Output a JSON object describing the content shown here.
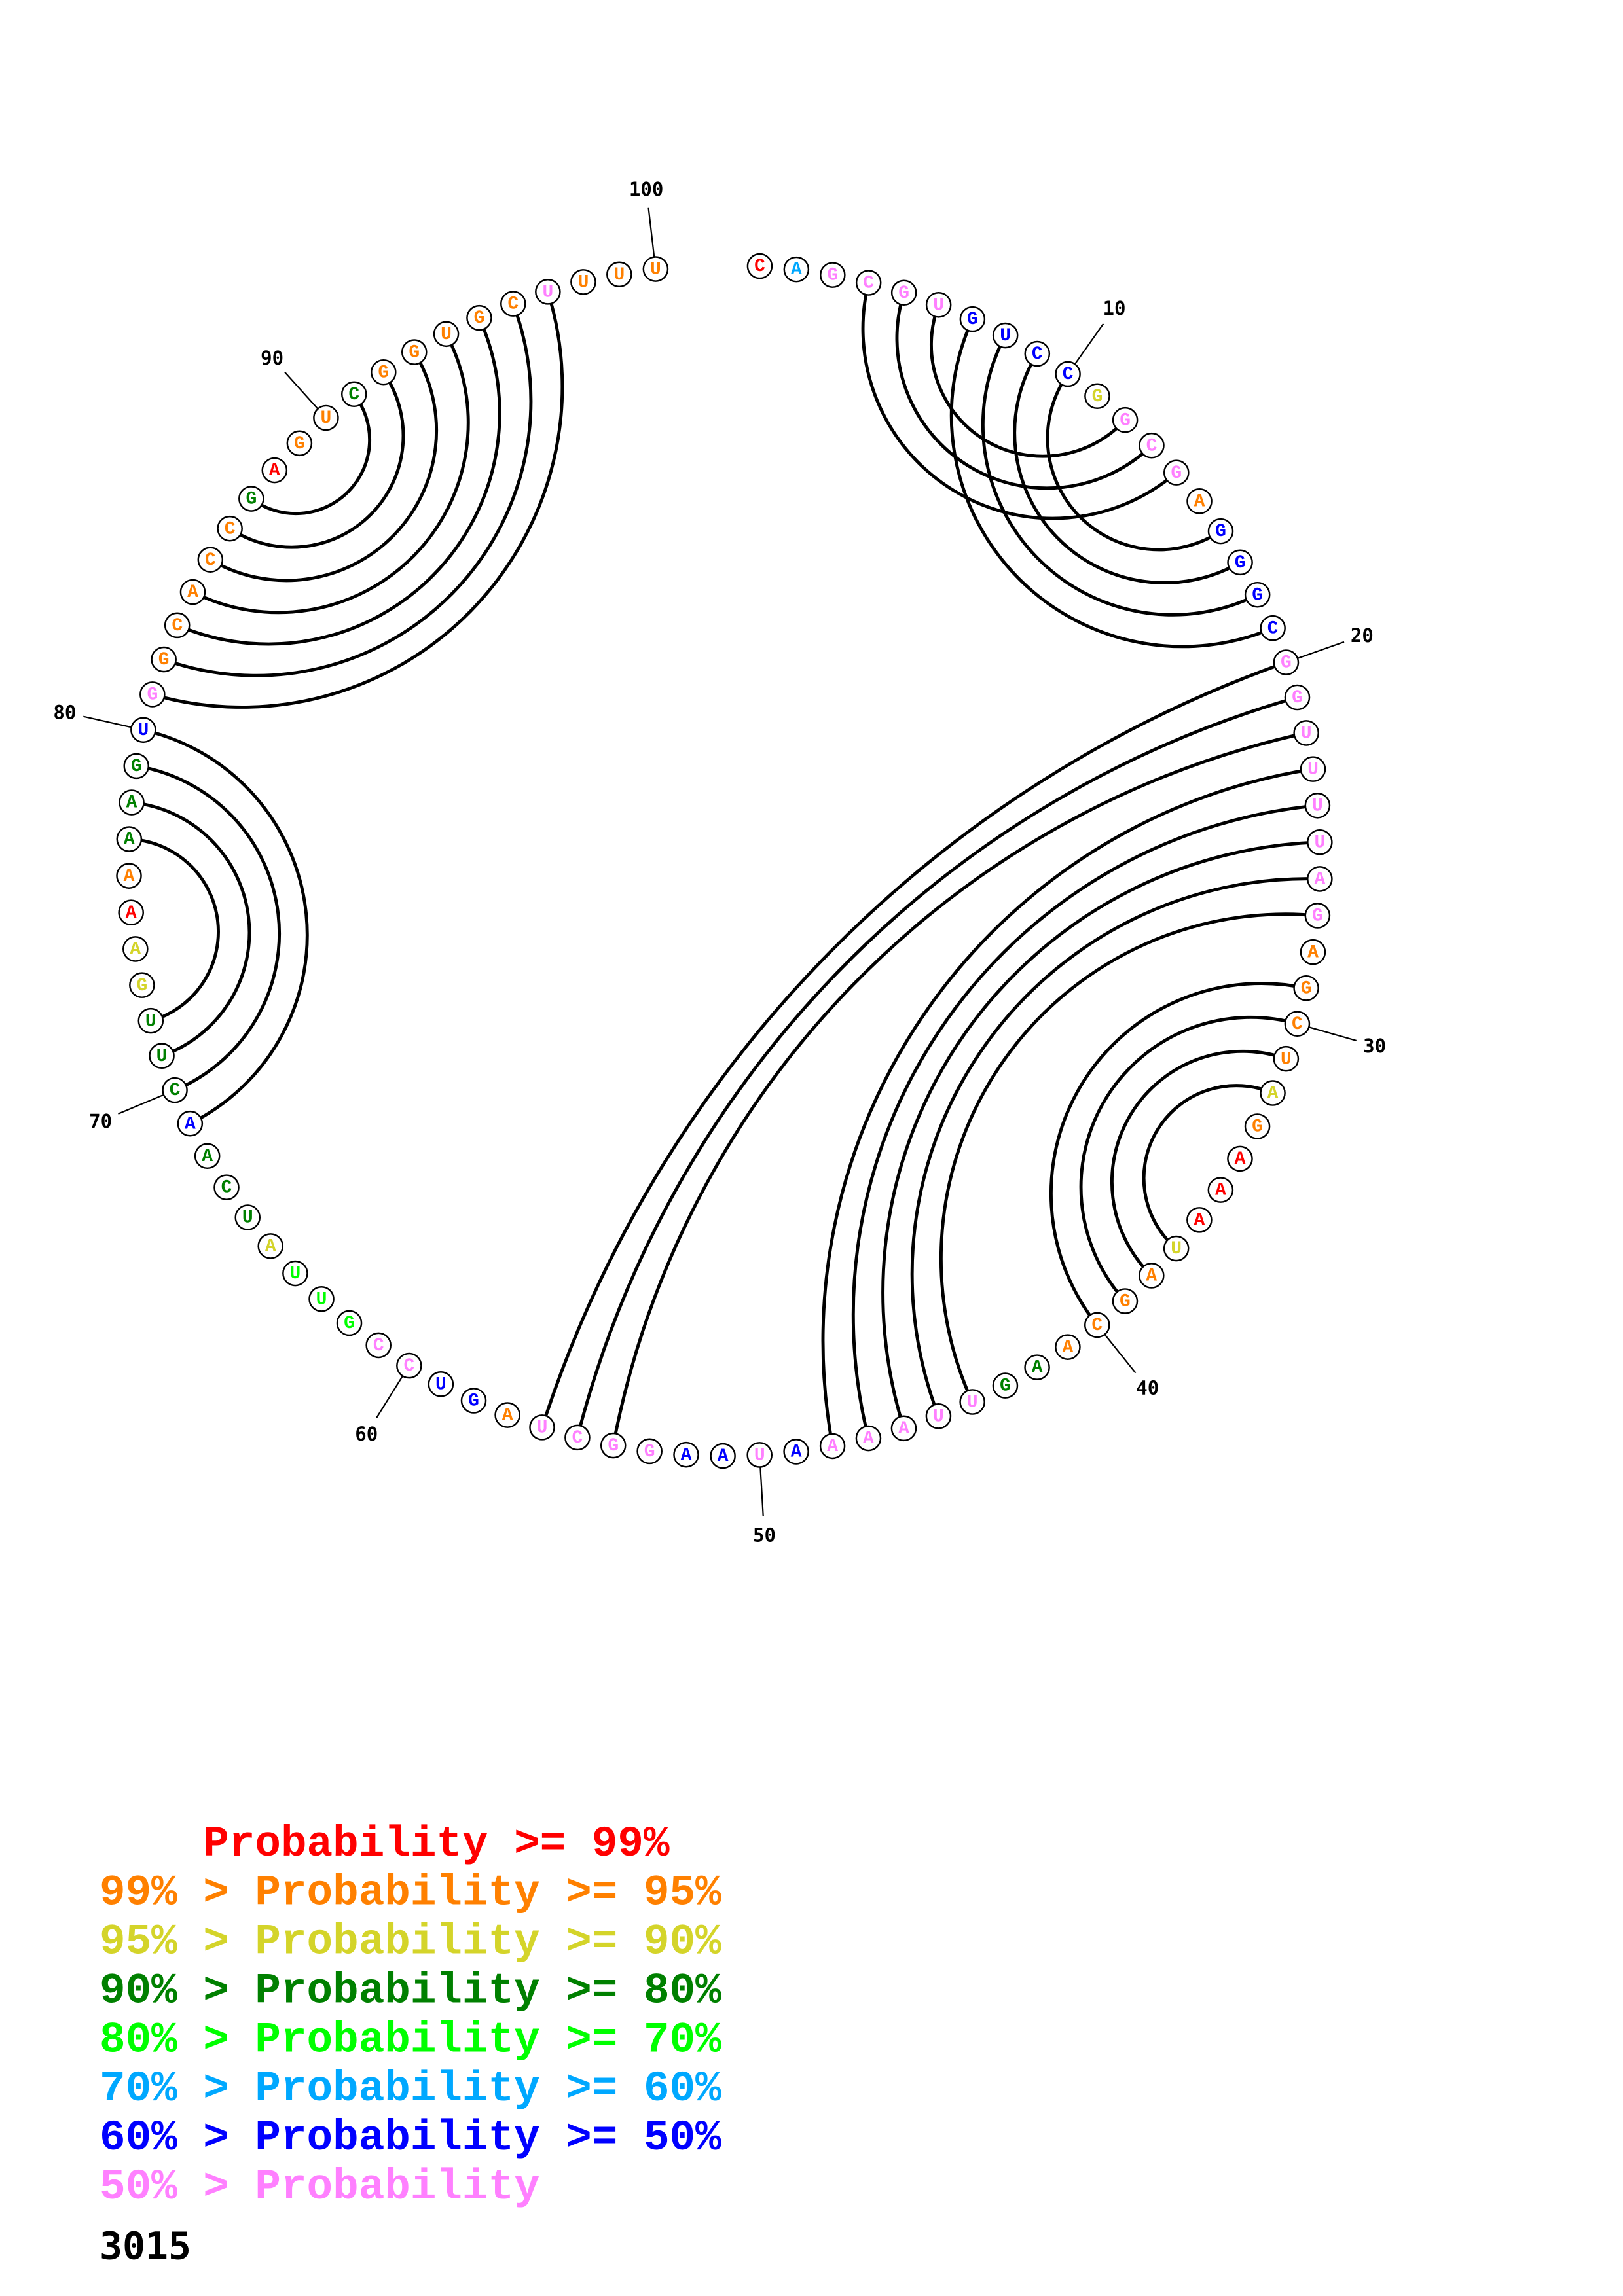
{
  "diagram": {
    "type": "rna-circle-plot",
    "sequence": "CAGCGUGUCCGGCGAGGGCGGUUUUAGAGCUAGAAAUAGCAAGUUAAAAUAAGGCUAGUCCGUUAUCAACUUGAAAAAGUGGCACCGAGUCGGUGCUUUU",
    "color_classes": "RSPPPPBBBBYPPPOBBBBPPPPPPPPOOOOYORRRYOOOODDPPPPPBPBBPPPPOBBPPLLLYDDDBDDDYYRODDDBPOOOOODROODOOOOOPOOO",
    "pairs": [
      [
        4,
        14
      ],
      [
        5,
        13
      ],
      [
        6,
        12
      ],
      [
        7,
        19
      ],
      [
        8,
        18
      ],
      [
        9,
        17
      ],
      [
        10,
        16
      ],
      [
        20,
        56
      ],
      [
        21,
        55
      ],
      [
        22,
        54
      ],
      [
        23,
        48
      ],
      [
        24,
        47
      ],
      [
        25,
        46
      ],
      [
        26,
        45
      ],
      [
        27,
        44
      ],
      [
        29,
        40
      ],
      [
        30,
        39
      ],
      [
        31,
        38
      ],
      [
        32,
        37
      ],
      [
        69,
        80
      ],
      [
        70,
        79
      ],
      [
        71,
        78
      ],
      [
        72,
        77
      ],
      [
        81,
        97
      ],
      [
        82,
        96
      ],
      [
        83,
        95
      ],
      [
        84,
        94
      ],
      [
        85,
        93
      ],
      [
        86,
        92
      ],
      [
        87,
        91
      ]
    ],
    "tick_labels": [
      "10",
      "20",
      "30",
      "40",
      "50",
      "60",
      "70",
      "80",
      "90",
      "100"
    ]
  },
  "colors": {
    "R": "#ff0000",
    "O": "#ff8000",
    "Y": "#d4d42a",
    "D": "#008000",
    "L": "#00ff00",
    "S": "#00a8ff",
    "B": "#0000ff",
    "P": "#ff80ff"
  },
  "legend": [
    {
      "text": "    Probability >= 99%",
      "color_class": "R"
    },
    {
      "text": "99% > Probability >= 95%",
      "color_class": "O"
    },
    {
      "text": "95% > Probability >= 90%",
      "color_class": "Y"
    },
    {
      "text": "90% > Probability >= 80%",
      "color_class": "D"
    },
    {
      "text": "80% > Probability >= 70%",
      "color_class": "L"
    },
    {
      "text": "70% > Probability >= 60%",
      "color_class": "S"
    },
    {
      "text": "60% > Probability >= 50%",
      "color_class": "B"
    },
    {
      "text": "50% > Probability",
      "color_class": "P"
    }
  ],
  "footer": {
    "id": "3015"
  }
}
